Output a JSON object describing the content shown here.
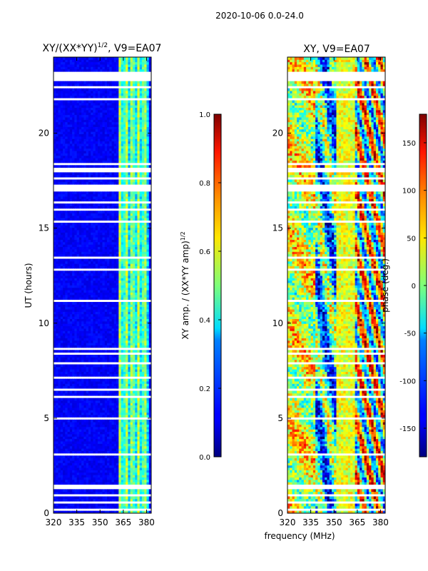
{
  "figure_title": "2020-10-06 0.0-24.0",
  "xlabel": "frequency (MHz)",
  "chart_data": [
    {
      "type": "heatmap",
      "title": "XY/(XX*YY)",
      "title_sup": "1/2",
      "title_suffix": ", V9=EA07",
      "ylabel": "UT (hours)",
      "xlabel": "frequency (MHz)",
      "x_range": [
        320,
        383
      ],
      "y_range": [
        0,
        24
      ],
      "x_ticks": [
        320,
        335,
        350,
        365,
        380
      ],
      "y_ticks": [
        0,
        5,
        10,
        15,
        20
      ],
      "colormap": "jet",
      "colorbar": {
        "label": "XY amp. / (XX*YY amp)",
        "label_sup": "1/2",
        "range": [
          0.0,
          1.0
        ],
        "ticks": [
          "0.0",
          "0.2",
          "0.4",
          "0.6",
          "0.8",
          "1.0"
        ]
      },
      "features": {
        "background_value": 0.12,
        "bright_band_mhz": [
          362,
          381
        ],
        "bright_band_value": 0.45
      }
    },
    {
      "type": "heatmap",
      "title": "XY, V9=EA07",
      "ylabel": "",
      "xlabel": "frequency (MHz)",
      "x_range": [
        320,
        383
      ],
      "y_range": [
        0,
        24
      ],
      "x_ticks": [
        320,
        335,
        350,
        365,
        380
      ],
      "y_ticks": [
        0,
        5,
        10,
        15,
        20
      ],
      "colormap": "jet",
      "colorbar": {
        "label": "phase (deg.)",
        "range": [
          -180,
          180
        ],
        "ticks": [
          "-150",
          "-100",
          "-50",
          "0",
          "50",
          "100",
          "150"
        ]
      }
    }
  ],
  "flagged_bands_hours": [
    [
      0.15,
      0.3
    ],
    [
      0.5,
      0.6
    ],
    [
      0.9,
      1.0
    ],
    [
      1.3,
      1.55
    ],
    [
      1.85,
      1.95
    ],
    [
      2.6,
      2.7
    ],
    [
      3.0,
      3.1
    ],
    [
      4.9,
      5.0
    ],
    [
      6.1,
      6.2
    ],
    [
      6.5,
      6.6
    ],
    [
      7.1,
      7.25
    ],
    [
      7.4,
      7.5
    ],
    [
      7.8,
      7.9
    ],
    [
      8.3,
      8.4
    ],
    [
      8.6,
      8.7
    ],
    [
      11.1,
      11.2
    ],
    [
      11.7,
      11.8
    ],
    [
      12.2,
      12.3
    ],
    [
      12.8,
      12.9
    ],
    [
      13.4,
      13.5
    ],
    [
      14.1,
      14.2
    ],
    [
      14.6,
      14.7
    ],
    [
      15.3,
      15.4
    ],
    [
      15.9,
      16.0
    ],
    [
      16.3,
      16.4
    ],
    [
      16.9,
      17.3
    ],
    [
      17.6,
      17.7
    ],
    [
      17.9,
      18.2
    ],
    [
      18.3,
      18.4
    ],
    [
      18.9,
      19.0
    ],
    [
      20.3,
      20.35
    ],
    [
      21.7,
      21.8
    ],
    [
      22.3,
      22.5
    ],
    [
      22.7,
      23.2
    ]
  ]
}
